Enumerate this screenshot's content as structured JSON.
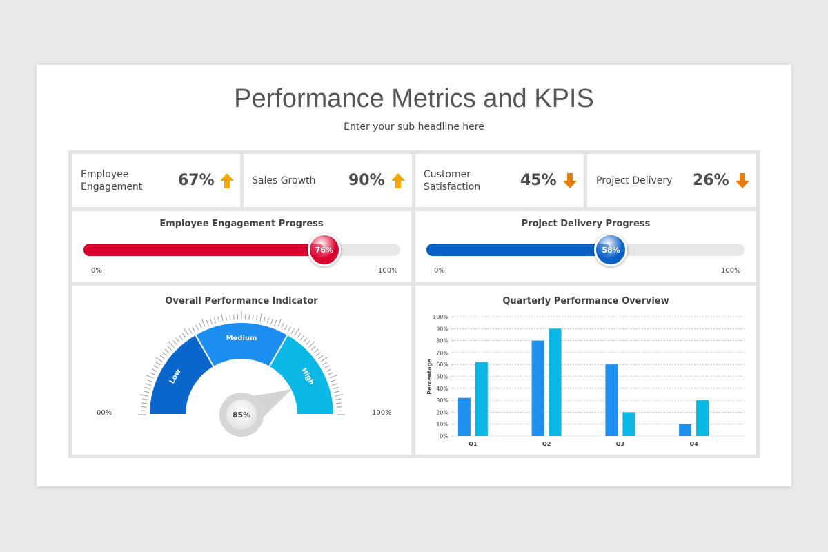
{
  "header": {
    "title": "Performance Metrics and KPIS",
    "subtitle": "Enter your sub headline here"
  },
  "kpis": [
    {
      "label": "Employee Engagement",
      "value": "67%",
      "trend": "up"
    },
    {
      "label": "Sales Growth",
      "value": "90%",
      "trend": "up"
    },
    {
      "label": "Customer Satisfaction",
      "value": "45%",
      "trend": "down"
    },
    {
      "label": "Project Delivery",
      "value": "26%",
      "trend": "down"
    }
  ],
  "progress": [
    {
      "title": "Employee Engagement Progress",
      "value": 0.76,
      "value_label": "76%",
      "min_label": "0%",
      "max_label": "100%",
      "color": "#d9002d"
    },
    {
      "title": "Project Delivery Progress",
      "value": 0.58,
      "value_label": "58%",
      "min_label": "0%",
      "max_label": "100%",
      "color": "#0a5fc4"
    }
  ],
  "gauge": {
    "title": "Overall Performance Indicator",
    "segments": [
      "Low",
      "Medium",
      "High"
    ],
    "value": 85,
    "value_label": "85%",
    "min_label": "00%",
    "max_label": "100%"
  },
  "colors": {
    "arrow_up": "#f4a800",
    "arrow_down": "#e87c0c",
    "bar_a": "#1e90f0",
    "bar_b": "#0bb8e6",
    "gauge_low": "#0b66cc",
    "gauge_medium": "#1c8ef0",
    "gauge_high": "#0bb8e6"
  },
  "chart_data": {
    "type": "bar",
    "title": "Quarterly Performance Overview",
    "ylabel": "Percentage",
    "categories": [
      "Q1",
      "Q2",
      "Q3",
      "Q4"
    ],
    "series": [
      {
        "values": [
          32,
          80,
          60,
          10
        ]
      },
      {
        "values": [
          62,
          90,
          20,
          30
        ]
      }
    ],
    "ylim": [
      0,
      100
    ],
    "yticks": [
      "0%",
      "10%",
      "20%",
      "30%",
      "40%",
      "50%",
      "60%",
      "70%",
      "80%",
      "90%",
      "100%"
    ],
    "grid": true
  }
}
